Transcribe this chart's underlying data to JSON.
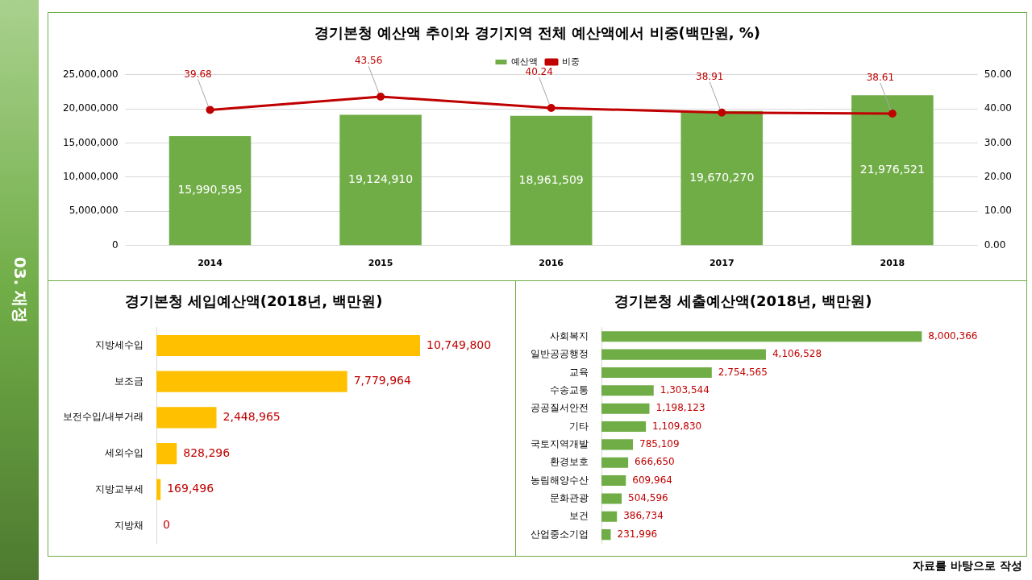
{
  "chart_data": [
    {
      "type": "bar",
      "title": "경기본청 예산액 추이와 경기지역 전체 예산액에서 비중(백만원, %)",
      "categories": [
        "2014",
        "2015",
        "2016",
        "2017",
        "2018"
      ],
      "series": [
        {
          "name": "예산액",
          "type": "bar",
          "color": "#70ad47",
          "values": [
            15990595,
            19124910,
            18961509,
            19670270,
            21976521
          ],
          "value_labels": [
            "15,990,595",
            "19,124,910",
            "18,961,509",
            "19,670,270",
            "21,976,521"
          ]
        },
        {
          "name": "비중",
          "type": "line",
          "axis": "y2",
          "color": "#c00000",
          "values": [
            39.68,
            43.56,
            40.24,
            38.91,
            38.61
          ],
          "value_labels": [
            "39.68",
            "43.56",
            "40.24",
            "38.91",
            "38.61"
          ]
        }
      ],
      "ylim": [
        0,
        25000000
      ],
      "yticks": [
        {
          "value": 0,
          "label": "0"
        },
        {
          "value": 5000000,
          "label": "5,000,000"
        },
        {
          "value": 10000000,
          "label": "10,000,000"
        },
        {
          "value": 15000000,
          "label": "15,000,000"
        },
        {
          "value": 20000000,
          "label": "20,000,000"
        },
        {
          "value": 25000000,
          "label": "25,000,000"
        }
      ],
      "y2lim": [
        0,
        50
      ],
      "y2ticks": [
        {
          "value": 0,
          "label": "0.00"
        },
        {
          "value": 10,
          "label": "10.00"
        },
        {
          "value": 20,
          "label": "20.00"
        },
        {
          "value": 30,
          "label": "30.00"
        },
        {
          "value": 40,
          "label": "40.00"
        },
        {
          "value": 50,
          "label": "50.00"
        }
      ],
      "grid": "y",
      "legend": "top",
      "marker": "circle",
      "annotations": [
        "03. 재정"
      ]
    },
    {
      "type": "bar",
      "orientation": "horizontal",
      "title": "경기본청 세입예산액(2018년, 백만원)",
      "categories": [
        "지방세수입",
        "보조금",
        "보전수입/내부거래",
        "세외수입",
        "지방교부세",
        "지방채"
      ],
      "values": [
        10749800,
        7779964,
        2448965,
        828296,
        169496,
        0
      ],
      "value_labels": [
        "10,749,800",
        "7,779,964",
        "2,448,965",
        "828,296",
        "169,496",
        "0"
      ],
      "color": "#ffc000",
      "tick_labels": "y"
    },
    {
      "type": "bar",
      "orientation": "horizontal",
      "title": "경기본청 세출예산액(2018년, 백만원)",
      "categories": [
        "사회복지",
        "일반공공행정",
        "교육",
        "수송교통",
        "공공질서안전",
        "기타",
        "국토지역개발",
        "환경보호",
        "농림해양수산",
        "문화관광",
        "보건",
        "산업중소기업"
      ],
      "values": [
        8000366,
        4106528,
        2754565,
        1303544,
        1198123,
        1109830,
        785109,
        666650,
        609964,
        504596,
        386734,
        231996
      ],
      "value_labels": [
        "8,000,366",
        "4,106,528",
        "2,754,565",
        "1,303,544",
        "1,198,123",
        "1,109,830",
        "785,109",
        "666,650",
        "609,964",
        "504,596",
        "386,734",
        "231,996"
      ],
      "color": "#70ad47",
      "tick_labels": "y",
      "annotations": [
        "자료를 바탕으로 작성"
      ]
    }
  ]
}
